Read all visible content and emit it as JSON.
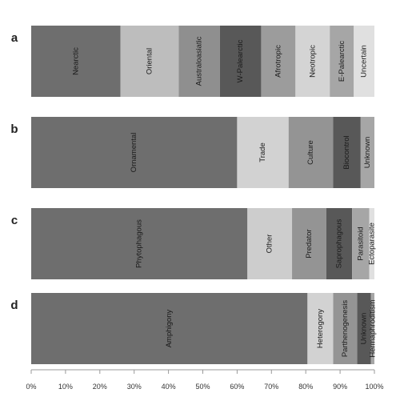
{
  "chart_data": {
    "type": "bar",
    "orientation": "horizontal",
    "stacked": true,
    "xlim": [
      0,
      100
    ],
    "x_ticks": [
      "0%",
      "10%",
      "20%",
      "30%",
      "40%",
      "50%",
      "60%",
      "70%",
      "80%",
      "90%",
      "100%"
    ],
    "grid": false,
    "panels": [
      {
        "letter": "a",
        "segments": [
          {
            "label": "Nearctic",
            "value": 26,
            "color": "#6e6e6e"
          },
          {
            "label": "Oriental",
            "value": 17,
            "color": "#bdbdbd"
          },
          {
            "label": "Australoasiatic",
            "value": 12,
            "color": "#8f8f8f"
          },
          {
            "label": "W-Palearctic",
            "value": 12,
            "color": "#585858"
          },
          {
            "label": "Afrotropic",
            "value": 10,
            "color": "#9c9c9c"
          },
          {
            "label": "Neotropic",
            "value": 10,
            "color": "#d4d4d4"
          },
          {
            "label": "E-Palearctic",
            "value": 7,
            "color": "#a6a6a6"
          },
          {
            "label": "Uncertain",
            "value": 6,
            "color": "#e0e0e0"
          }
        ]
      },
      {
        "letter": "b",
        "segments": [
          {
            "label": "Ornamental",
            "value": 60,
            "color": "#6e6e6e"
          },
          {
            "label": "Trade",
            "value": 15,
            "color": "#d2d2d2"
          },
          {
            "label": "Culture",
            "value": 13,
            "color": "#949494"
          },
          {
            "label": "Biocontrol",
            "value": 8,
            "color": "#585858"
          },
          {
            "label": "Unknown",
            "value": 4,
            "color": "#a6a6a6"
          }
        ]
      },
      {
        "letter": "c",
        "segments": [
          {
            "label": "Phytophagous",
            "value": 63,
            "color": "#6e6e6e"
          },
          {
            "label": "Other",
            "value": 13,
            "color": "#cdcdcd"
          },
          {
            "label": "Predator",
            "value": 10,
            "color": "#949494"
          },
          {
            "label": "Saprophagous",
            "value": 7.5,
            "color": "#585858"
          },
          {
            "label": "Parasitoid",
            "value": 5,
            "color": "#a6a6a6"
          },
          {
            "label": "Ectoparasite",
            "value": 1.5,
            "color": "#e0e0e0"
          }
        ]
      },
      {
        "letter": "d",
        "segments": [
          {
            "label": "Amphigony",
            "value": 80.5,
            "color": "#6e6e6e"
          },
          {
            "label": "Heterogony",
            "value": 7.5,
            "color": "#d2d2d2"
          },
          {
            "label": "Parthenogenesis",
            "value": 7,
            "color": "#949494"
          },
          {
            "label": "Unknown",
            "value": 4,
            "color": "#585858"
          },
          {
            "label": "Hermaphroditism",
            "value": 1,
            "color": "#a6a6a6"
          }
        ]
      }
    ]
  }
}
